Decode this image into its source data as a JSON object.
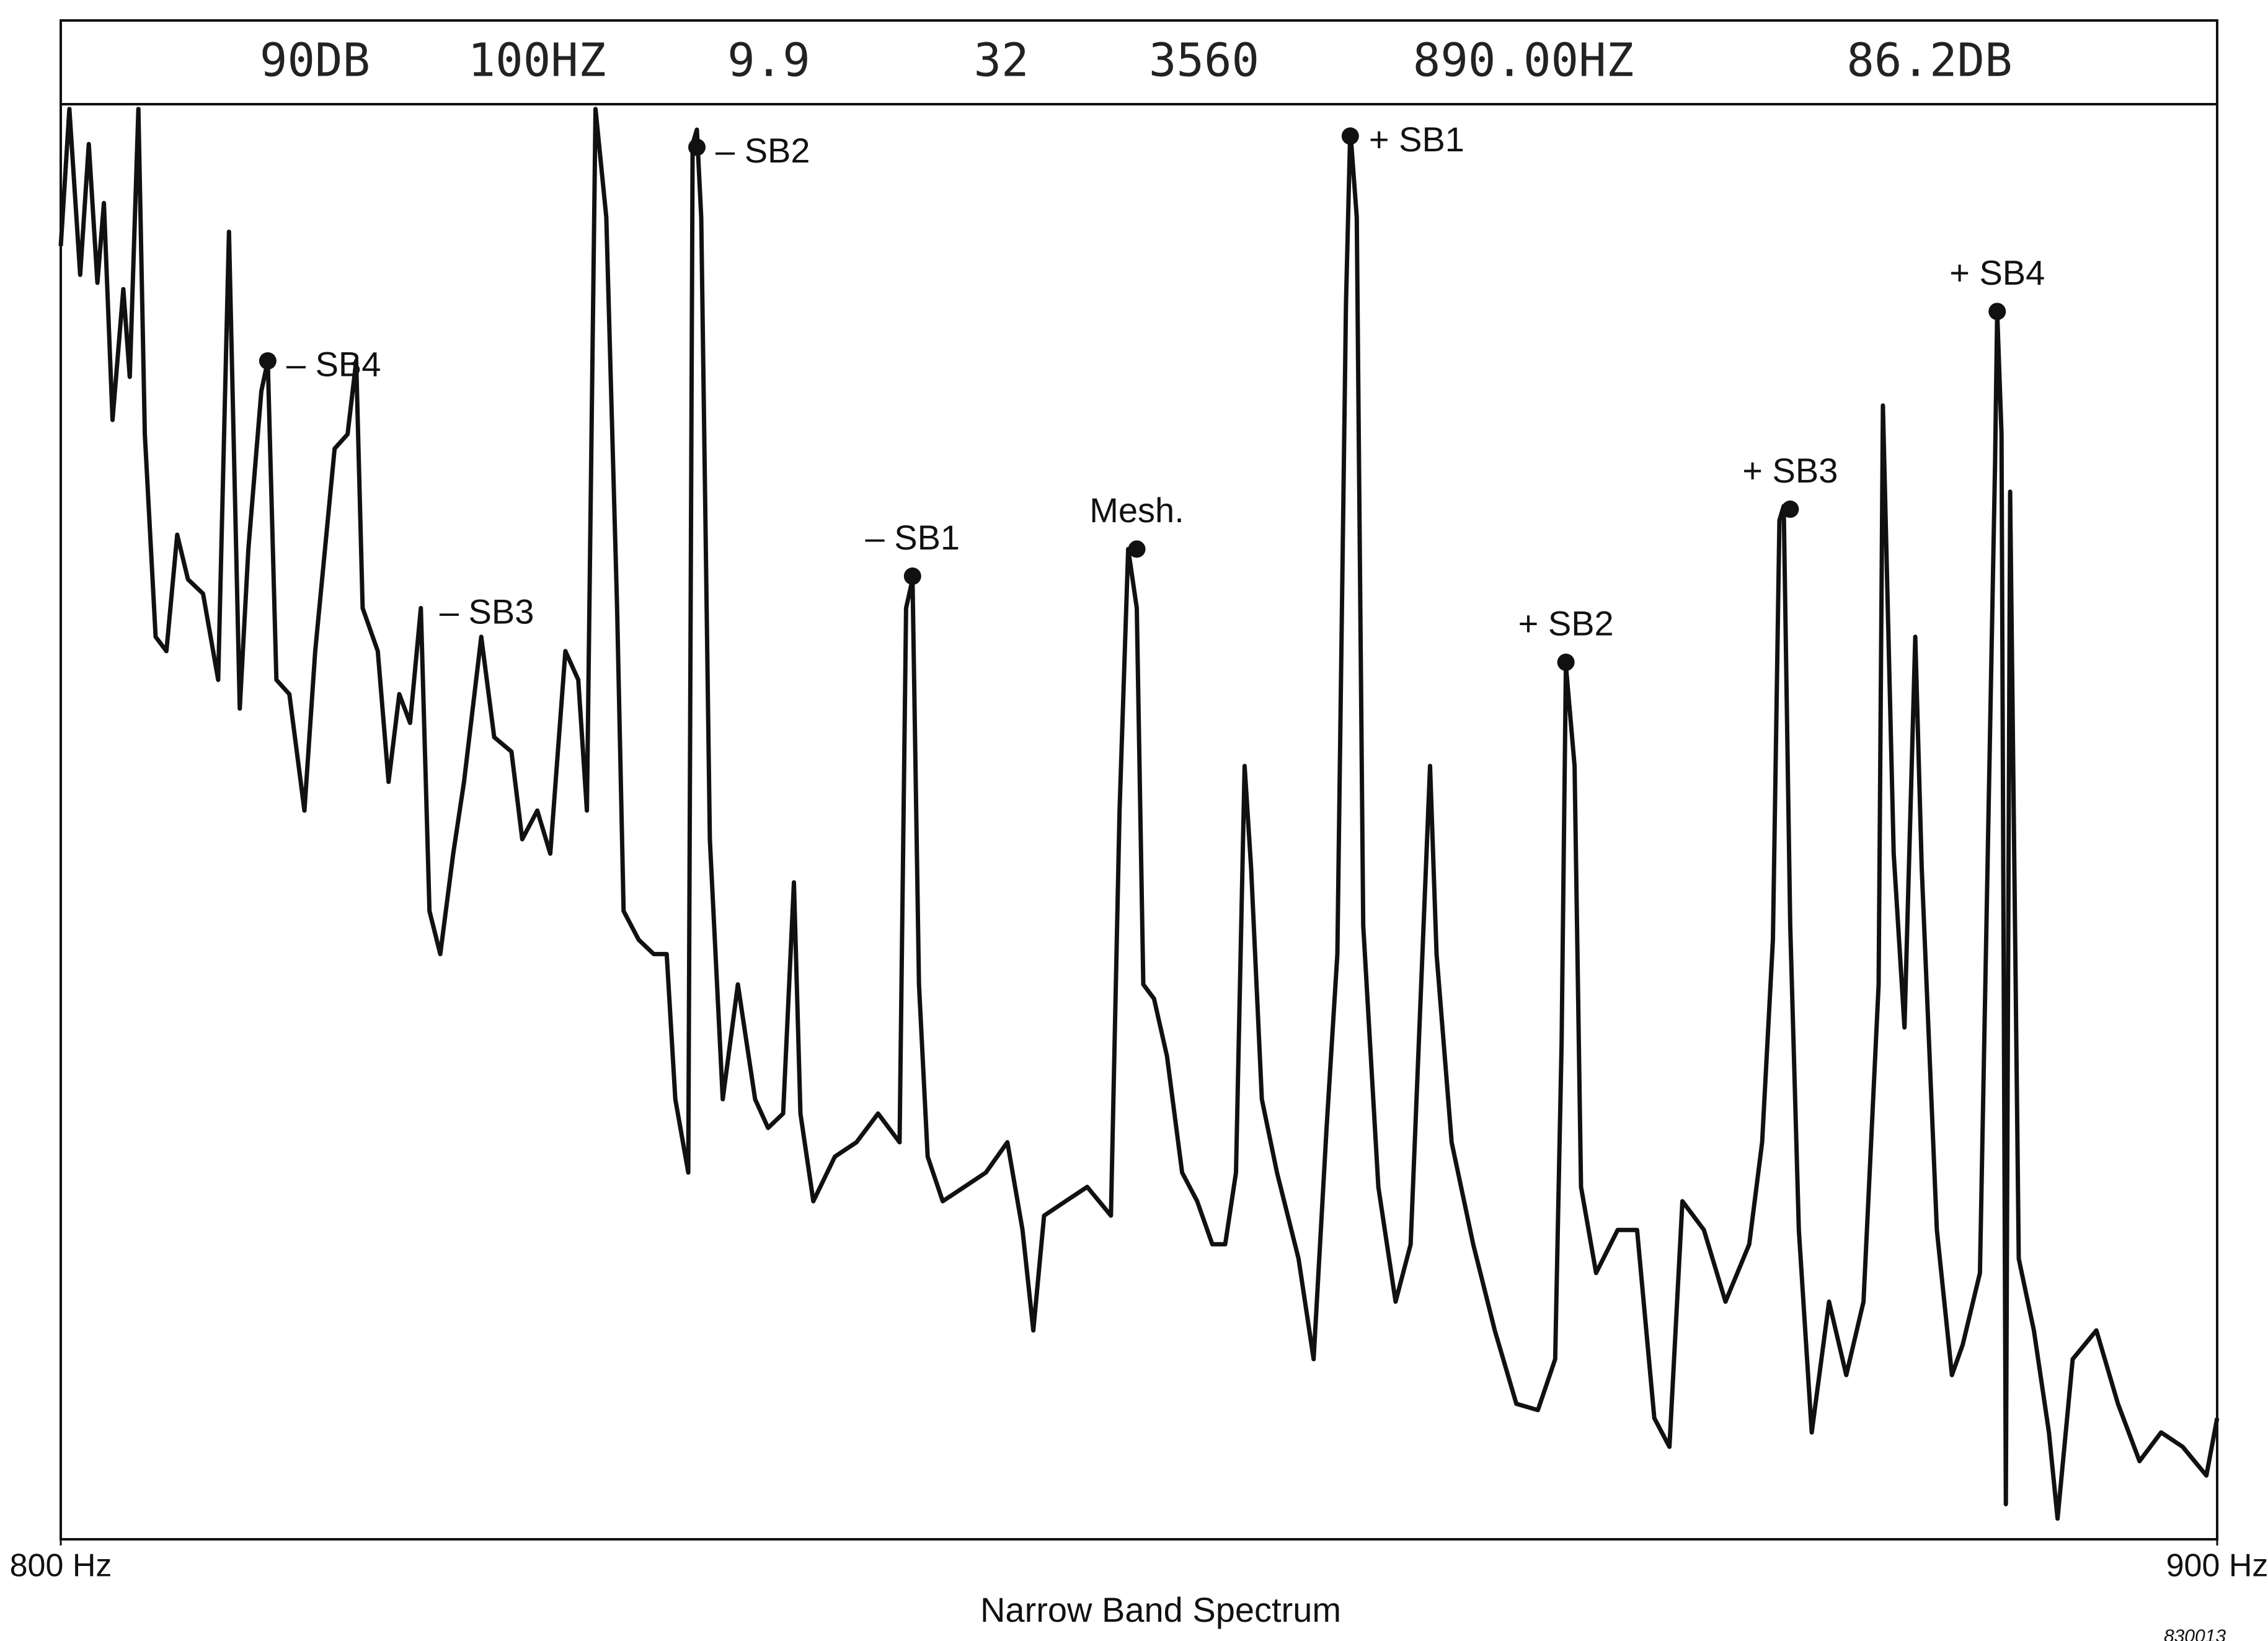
{
  "chart_data": {
    "type": "line",
    "header": [
      "90DB",
      "100HZ",
      "9.9",
      "32",
      "3560",
      "890.00HZ",
      "86.2DB"
    ],
    "title": "Narrow Band Spectrum",
    "figure_id": "830013",
    "xlim": [
      800,
      900
    ],
    "xticks": [
      {
        "value": 800,
        "label": "800 Hz"
      },
      {
        "value": 900,
        "label": "900 Hz"
      }
    ],
    "ylim": [
      0,
      90
    ],
    "color": "#111111",
    "x": [
      800.0,
      800.4,
      800.9,
      801.3,
      801.7,
      802.0,
      802.4,
      802.9,
      803.2,
      803.6,
      803.9,
      804.4,
      804.9,
      805.4,
      805.9,
      806.6,
      807.3,
      807.8,
      808.3,
      808.7,
      809.3,
      809.6,
      810.0,
      810.6,
      811.3,
      811.8,
      812.7,
      813.3,
      813.7,
      814.0,
      814.7,
      815.2,
      815.7,
      816.2,
      816.7,
      817.1,
      817.6,
      818.2,
      818.7,
      819.5,
      820.1,
      820.9,
      821.4,
      822.1,
      822.7,
      823.4,
      824.0,
      824.4,
      824.8,
      825.3,
      825.8,
      826.1,
      826.8,
      827.5,
      828.1,
      828.5,
      829.1,
      829.3,
      829.5,
      829.7,
      830.1,
      830.7,
      831.4,
      832.2,
      832.8,
      833.5,
      834.0,
      834.3,
      834.9,
      835.9,
      836.9,
      837.9,
      838.9,
      839.2,
      839.5,
      839.8,
      840.2,
      840.9,
      841.9,
      842.9,
      843.9,
      844.6,
      845.1,
      845.6,
      846.6,
      847.6,
      848.7,
      849.1,
      849.5,
      849.9,
      850.2,
      850.7,
      851.3,
      852.0,
      852.7,
      853.4,
      854.0,
      854.5,
      854.9,
      855.2,
      855.7,
      856.4,
      857.4,
      858.1,
      858.7,
      859.2,
      859.6,
      859.8,
      860.1,
      860.4,
      861.1,
      861.9,
      862.6,
      863.5,
      863.8,
      864.5,
      865.5,
      866.5,
      867.5,
      868.5,
      869.3,
      869.6,
      869.8,
      870.2,
      870.5,
      871.2,
      872.2,
      873.1,
      873.9,
      874.6,
      875.2,
      876.2,
      877.2,
      878.3,
      878.9,
      879.4,
      879.7,
      879.9,
      880.2,
      880.6,
      881.2,
      882.0,
      882.8,
      883.6,
      884.3,
      884.5,
      885.0,
      885.5,
      886.0,
      886.3,
      887.0,
      887.7,
      888.2,
      889.0,
      889.7,
      889.8,
      890.0,
      890.2,
      890.4,
      890.8,
      891.5,
      892.2,
      892.6,
      893.3,
      894.4,
      895.4,
      896.4,
      897.4,
      898.4,
      899.5,
      900.0
    ],
    "series": [
      {
        "values": [
          81.1,
          89.7,
          79.3,
          87.5,
          78.8,
          83.8,
          70.2,
          78.4,
          72.9,
          89.7,
          69.3,
          56.6,
          55.7,
          63.0,
          60.2,
          59.3,
          53.9,
          82.0,
          52.1,
          62.1,
          72.0,
          73.9,
          53.9,
          53.0,
          45.7,
          55.7,
          68.4,
          69.3,
          73.9,
          58.4,
          55.7,
          47.5,
          53.0,
          51.2,
          58.4,
          39.4,
          36.7,
          43.0,
          47.5,
          56.6,
          50.3,
          49.4,
          43.9,
          45.7,
          43.0,
          55.7,
          53.9,
          45.7,
          89.7,
          82.9,
          58.4,
          39.4,
          37.6,
          36.7,
          36.7,
          27.6,
          23.0,
          87.5,
          88.4,
          82.9,
          43.9,
          27.6,
          34.8,
          27.6,
          25.8,
          26.7,
          41.2,
          26.7,
          21.2,
          24.0,
          24.9,
          26.7,
          24.9,
          58.4,
          60.2,
          34.8,
          24.0,
          21.2,
          22.1,
          23.0,
          24.9,
          19.4,
          13.1,
          20.3,
          21.2,
          22.1,
          20.3,
          45.7,
          62.1,
          58.4,
          34.8,
          33.9,
          30.3,
          23.0,
          21.2,
          18.5,
          18.5,
          23.0,
          48.5,
          42.1,
          27.6,
          23.0,
          17.6,
          11.3,
          25.8,
          36.7,
          77.5,
          88.4,
          82.9,
          38.5,
          22.1,
          14.9,
          18.5,
          48.5,
          36.7,
          24.9,
          18.5,
          13.1,
          8.5,
          8.1,
          11.3,
          31.2,
          54.8,
          48.5,
          22.1,
          16.7,
          19.4,
          19.4,
          7.6,
          5.8,
          21.2,
          19.4,
          14.9,
          18.5,
          24.9,
          37.6,
          63.9,
          64.8,
          38.5,
          19.4,
          6.7,
          14.9,
          10.3,
          14.9,
          34.8,
          71.1,
          43.0,
          32.1,
          56.6,
          42.1,
          19.4,
          10.3,
          12.2,
          16.7,
          67.5,
          77.0,
          69.3,
          2.2,
          65.7,
          17.6,
          13.1,
          6.7,
          1.3,
          11.3,
          13.1,
          8.5,
          4.9,
          6.7,
          5.8,
          4.0,
          7.6
        ]
      }
    ],
    "annotations": [
      {
        "text": "– SB4",
        "x": 809.6,
        "y": 73.9,
        "marker": true,
        "label_side": "right"
      },
      {
        "text": "– SB3",
        "x": 816.7,
        "y": 58.4,
        "marker": false,
        "label_side": "right"
      },
      {
        "text": "– SB2",
        "x": 829.5,
        "y": 87.3,
        "marker": true,
        "label_side": "right"
      },
      {
        "text": "– SB1",
        "x": 839.5,
        "y": 60.4,
        "marker": true,
        "label_side": "above"
      },
      {
        "text": "Mesh.",
        "x": 849.9,
        "y": 62.1,
        "marker": true,
        "label_side": "above"
      },
      {
        "text": "+ SB1",
        "x": 859.8,
        "y": 88.0,
        "marker": true,
        "label_side": "right"
      },
      {
        "text": "+ SB2",
        "x": 869.8,
        "y": 55.0,
        "marker": true,
        "label_side": "above"
      },
      {
        "text": "+ SB3",
        "x": 880.2,
        "y": 64.6,
        "marker": true,
        "label_side": "above"
      },
      {
        "text": "+ SB4",
        "x": 889.8,
        "y": 77.0,
        "marker": true,
        "label_side": "above"
      }
    ]
  }
}
